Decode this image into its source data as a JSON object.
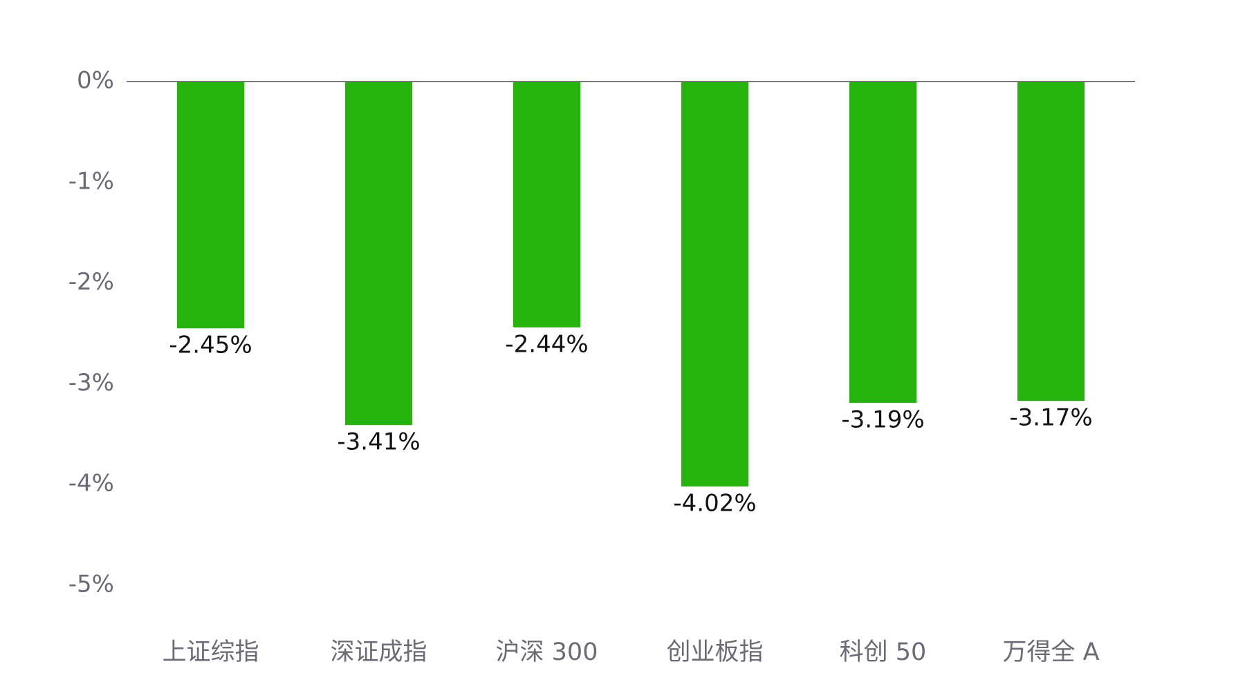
{
  "chart_data": {
    "type": "bar",
    "categories": [
      "上证综指",
      "深证成指",
      "沪深 300",
      "创业板指",
      "科创 50",
      "万得全 A"
    ],
    "values": [
      -2.45,
      -3.41,
      -2.44,
      -4.02,
      -3.19,
      -3.17
    ],
    "value_labels": [
      "-2.45%",
      "-3.41%",
      "-2.44%",
      "-4.02%",
      "-3.19%",
      "-3.17%"
    ],
    "color": "#27b30e",
    "ylim": [
      -5,
      0
    ],
    "yticks": [
      {
        "value": 0,
        "label": "0%"
      },
      {
        "value": -1,
        "label": "-1%"
      },
      {
        "value": -2,
        "label": "-2%"
      },
      {
        "value": -3,
        "label": "-3%"
      },
      {
        "value": -4,
        "label": "-4%"
      },
      {
        "value": -5,
        "label": "-5%"
      }
    ],
    "grid": false
  }
}
